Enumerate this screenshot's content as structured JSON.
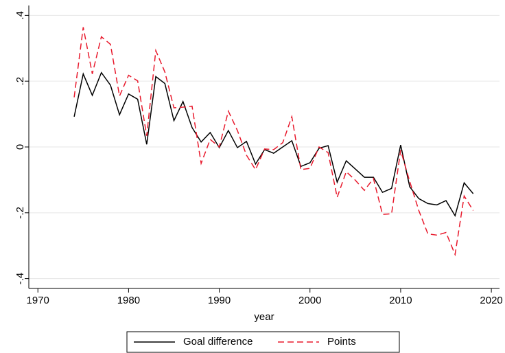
{
  "chart_data": {
    "type": "line",
    "x_label": "year",
    "x": [
      1974,
      1975,
      1976,
      1977,
      1978,
      1979,
      1980,
      1981,
      1982,
      1983,
      1984,
      1985,
      1986,
      1987,
      1988,
      1989,
      1990,
      1991,
      1992,
      1993,
      1994,
      1995,
      1996,
      1997,
      1998,
      1999,
      2000,
      2001,
      2002,
      2003,
      2004,
      2005,
      2006,
      2007,
      2008,
      2009,
      2010,
      2011,
      2012,
      2013,
      2014,
      2015,
      2016,
      2017,
      2018
    ],
    "series": [
      {
        "name": "Goal difference",
        "color": "#000000",
        "dashed": false,
        "values": [
          0.092,
          0.222,
          0.157,
          0.226,
          0.188,
          0.098,
          0.161,
          0.145,
          0.008,
          0.214,
          0.193,
          0.08,
          0.138,
          0.059,
          0.015,
          0.044,
          -0.002,
          0.05,
          -0.002,
          0.017,
          -0.052,
          -0.008,
          -0.019,
          0.0,
          0.019,
          -0.059,
          -0.048,
          -0.004,
          0.004,
          -0.107,
          -0.042,
          -0.067,
          -0.092,
          -0.092,
          -0.138,
          -0.126,
          0.006,
          -0.121,
          -0.157,
          -0.172,
          -0.176,
          -0.163,
          -0.209,
          -0.109,
          -0.142
        ]
      },
      {
        "name": "Points",
        "color": "#e8192c",
        "dashed": true,
        "values": [
          0.151,
          0.364,
          0.222,
          0.335,
          0.312,
          0.155,
          0.218,
          0.201,
          0.034,
          0.293,
          0.228,
          0.119,
          0.121,
          0.124,
          -0.05,
          0.023,
          0.0,
          0.109,
          0.05,
          -0.025,
          -0.069,
          -0.006,
          -0.008,
          0.013,
          0.092,
          -0.069,
          -0.065,
          0.0,
          -0.017,
          -0.153,
          -0.075,
          -0.101,
          -0.132,
          -0.096,
          -0.205,
          -0.203,
          -0.01,
          -0.105,
          -0.193,
          -0.264,
          -0.268,
          -0.26,
          -0.327,
          -0.149,
          -0.193
        ]
      }
    ],
    "xlim": [
      1969,
      2020.9
    ],
    "xticks": [
      1970,
      1980,
      1990,
      2000,
      2010,
      2020
    ],
    "ylim": [
      -0.43,
      0.43
    ],
    "yticks": [
      {
        "value": -0.4,
        "label": "-.4"
      },
      {
        "value": -0.2,
        "label": "-.2"
      },
      0,
      {
        "value": 0.2,
        "label": ".2"
      },
      {
        "value": 0.4,
        "label": ".4"
      }
    ],
    "grid": true,
    "legend_position": "bottom"
  }
}
